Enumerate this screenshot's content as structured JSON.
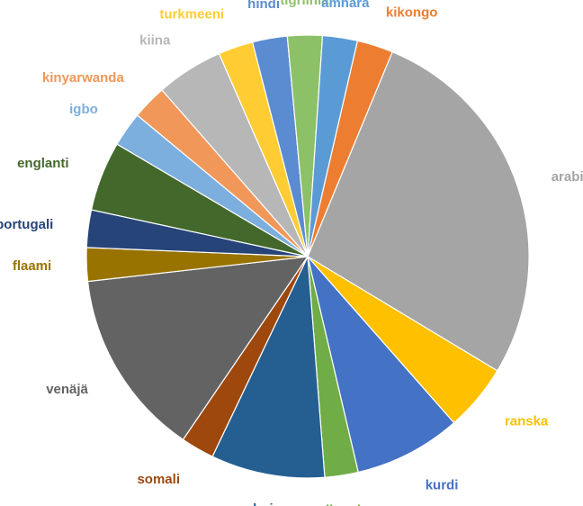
{
  "chart_data": {
    "type": "pie",
    "title": "",
    "start_angle_deg": 13,
    "slices": [
      {
        "label": "kikongo",
        "value": 2.7,
        "color": "#ED7D31",
        "label_color": "#ED7D31"
      },
      {
        "label": "arabia",
        "value": 28.0,
        "color": "#A5A5A5",
        "label_color": "#A5A5A5"
      },
      {
        "label": "ranska",
        "value": 5.0,
        "color": "#FFC000",
        "label_color": "#FFC000"
      },
      {
        "label": "kurdi",
        "value": 8.0,
        "color": "#4472C4",
        "label_color": "#4472C4"
      },
      {
        "label": "lingala",
        "value": 2.5,
        "color": "#70AD47",
        "label_color": "#70AD47"
      },
      {
        "label": "dari",
        "value": 8.5,
        "color": "#255E91",
        "label_color": "#255E91"
      },
      {
        "label": "somali",
        "value": 2.5,
        "color": "#9E480E",
        "label_color": "#9E480E"
      },
      {
        "label": "venäjä",
        "value": 14.0,
        "color": "#636363",
        "label_color": "#636363"
      },
      {
        "label": "flaami",
        "value": 2.5,
        "color": "#997300",
        "label_color": "#997300"
      },
      {
        "label": "portugali",
        "value": 2.8,
        "color": "#264478",
        "label_color": "#264478"
      },
      {
        "label": "englanti",
        "value": 5.2,
        "color": "#43682B",
        "label_color": "#43682B"
      },
      {
        "label": "igbo",
        "value": 2.6,
        "color": "#7CAFDD",
        "label_color": "#7CAFDD"
      },
      {
        "label": "kinyarwanda",
        "value": 2.6,
        "color": "#F1975A",
        "label_color": "#F1975A"
      },
      {
        "label": "kiina",
        "value": 5.0,
        "color": "#B7B7B7",
        "label_color": "#B7B7B7"
      },
      {
        "label": "turkmeeni",
        "value": 2.6,
        "color": "#FFCD33",
        "label_color": "#FFCD33"
      },
      {
        "label": "hindi",
        "value": 2.6,
        "color": "#5B8BD0",
        "label_color": "#5B8BD0"
      },
      {
        "label": "tigriinia",
        "value": 2.6,
        "color": "#8CC168",
        "label_color": "#8CC168"
      },
      {
        "label": "amhara",
        "value": 2.6,
        "color": "#5B9BD5",
        "label_color": "#5B9BD5"
      }
    ]
  }
}
